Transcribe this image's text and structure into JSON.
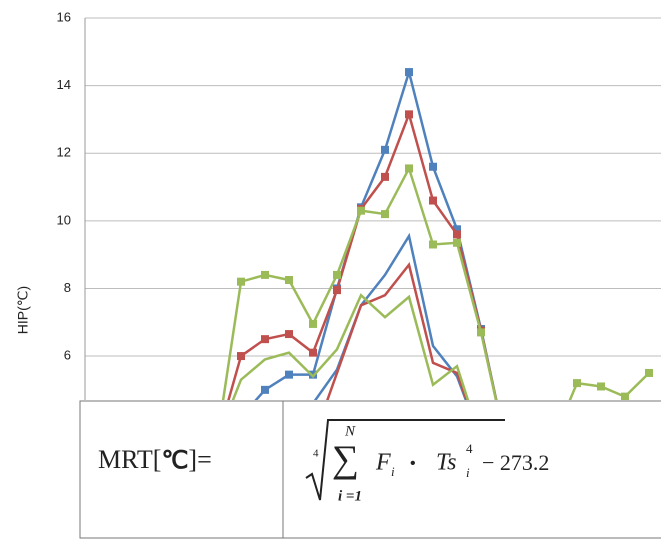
{
  "chart_data": {
    "type": "line",
    "y_label": "HIP(℃)",
    "categories": [
      null,
      null,
      null,
      null,
      null,
      null,
      null,
      null,
      null,
      null,
      null,
      null,
      null,
      null,
      null,
      null,
      null,
      null,
      null,
      null,
      null,
      null,
      null,
      null
    ],
    "ylim": [
      4.7,
      16
    ],
    "yticks": [
      6,
      8,
      10,
      12,
      14,
      16
    ],
    "grid": true,
    "series": [
      {
        "color": "#4f81bd",
        "marker": true,
        "values": [
          null,
          null,
          null,
          null,
          null,
          null,
          4.2,
          5.0,
          5.45,
          5.45,
          8.0,
          10.4,
          12.1,
          14.4,
          11.6,
          9.75,
          6.8,
          3.5,
          null,
          null,
          null,
          null,
          null,
          null
        ]
      },
      {
        "color": "#c0504d",
        "marker": true,
        "values": [
          null,
          null,
          null,
          null,
          null,
          3.5,
          6.0,
          6.5,
          6.65,
          6.1,
          7.95,
          10.35,
          11.3,
          13.15,
          10.6,
          9.6,
          6.75,
          3.5,
          null,
          null,
          null,
          null,
          null,
          null
        ]
      },
      {
        "color": "#9bbb59",
        "marker": true,
        "values": [
          null,
          null,
          null,
          null,
          null,
          3.5,
          8.2,
          8.4,
          8.25,
          6.95,
          8.4,
          10.3,
          10.2,
          11.55,
          9.3,
          9.35,
          6.7,
          3.5,
          null,
          3.5,
          5.2,
          5.1,
          4.8,
          5.5
        ]
      },
      {
        "color": "#4f81bd",
        "marker": false,
        "values": [
          null,
          null,
          null,
          null,
          null,
          null,
          null,
          null,
          null,
          4.6,
          5.6,
          7.5,
          8.4,
          9.55,
          6.3,
          5.4,
          3.5,
          null,
          null,
          null,
          null,
          null,
          null,
          null
        ]
      },
      {
        "color": "#c0504d",
        "marker": false,
        "values": [
          null,
          null,
          null,
          null,
          null,
          null,
          null,
          null,
          null,
          3.5,
          5.5,
          7.5,
          7.8,
          8.7,
          5.8,
          5.5,
          3.5,
          null,
          null,
          null,
          null,
          null,
          null,
          null
        ]
      },
      {
        "color": "#9bbb59",
        "marker": false,
        "values": [
          null,
          null,
          null,
          null,
          null,
          3.5,
          5.3,
          5.9,
          6.1,
          5.4,
          6.2,
          7.8,
          7.15,
          7.75,
          5.15,
          5.7,
          3.5,
          null,
          null,
          null,
          null,
          null,
          null,
          null
        ]
      }
    ],
    "formula": {
      "lhs_start": "MRT[",
      "lhs_unit": "℃",
      "lhs_end": "]=",
      "root_index": "4",
      "sum": "∑",
      "sum_top": "N",
      "sum_bottom": "i =1",
      "f": "F",
      "f_sub": "i",
      "dot": "•",
      "ts": "Ts",
      "ts_sub": "i",
      "ts_sup": "4",
      "tail": "− 273.2"
    }
  }
}
